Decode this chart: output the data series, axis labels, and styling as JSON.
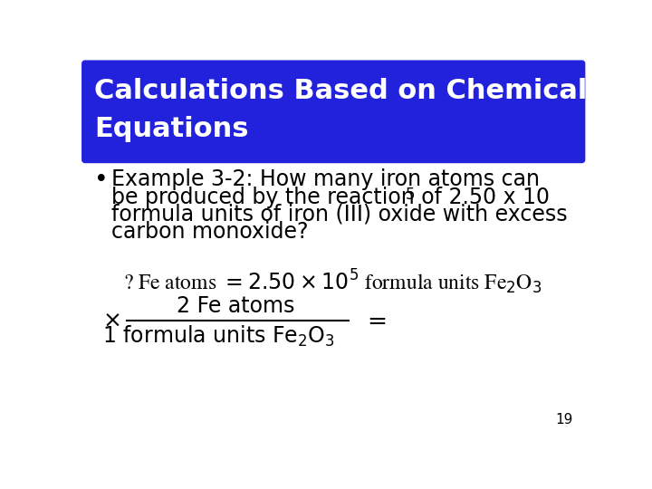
{
  "title_line1": "Calculations Based on Chemical",
  "title_line2": "Equations",
  "title_bg_color": "#2222DD",
  "title_text_color": "#FFFFFF",
  "bg_color": "#FFFFFF",
  "bullet_text_line1": "Example 3-2: How many iron atoms can",
  "bullet_text_line2a": "be produced by the reaction of 2.50 x 10",
  "bullet_text_line2_sup": "5",
  "bullet_text_line3": "formula units of iron (III) oxide with excess",
  "bullet_text_line4": "carbon monoxide?",
  "page_number": "19",
  "font_size_title": 22,
  "font_size_bullet": 17,
  "font_size_equation": 15
}
